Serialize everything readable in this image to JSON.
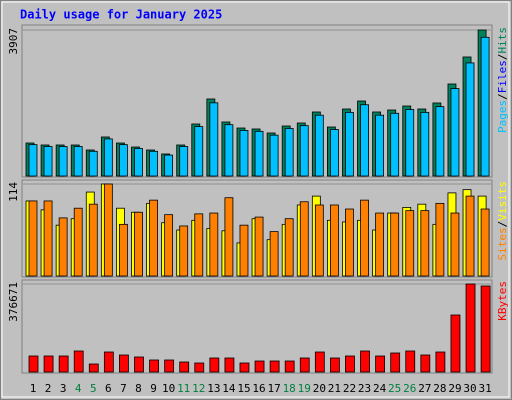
{
  "legend_separator": "/",
  "chart_data": [
    {
      "type": "bar",
      "title": "Daily usage for January 2025",
      "ylim": [
        0,
        3907
      ],
      "yticks": [
        3907
      ],
      "series": [
        {
          "name": "Hits",
          "color": "#00805c",
          "values": [
            883,
            830,
            830,
            830,
            696,
            1044,
            883,
            776,
            696,
            589,
            830,
            1392,
            2061,
            1445,
            1284,
            1258,
            1151,
            1338,
            1418,
            1713,
            1311,
            1793,
            2007,
            1713,
            1766,
            1873,
            1793,
            1954,
            2462,
            3185,
            3907
          ]
        },
        {
          "name": "Files",
          "color": "#0000ff",
          "values": [
            265,
            249,
            249,
            249,
            209,
            313,
            265,
            233,
            209,
            177,
            249,
            418,
            618,
            434,
            385,
            377,
            345,
            401,
            425,
            514,
            393,
            538,
            602,
            514,
            530,
            562,
            538,
            586,
            739,
            956,
            1172
          ]
        },
        {
          "name": "Pages",
          "color": "#00c0ff",
          "values": [
            839,
            789,
            789,
            789,
            661,
            992,
            839,
            737,
            661,
            560,
            789,
            1322,
            1958,
            1373,
            1220,
            1195,
            1093,
            1271,
            1347,
            1627,
            1245,
            1703,
            1907,
            1627,
            1678,
            1779,
            1703,
            1856,
            2339,
            3026,
            3712
          ]
        }
      ]
    },
    {
      "type": "bar",
      "ylim": [
        0,
        114
      ],
      "yticks": [
        114
      ],
      "series": [
        {
          "name": "Visits",
          "color": "#ffff00",
          "values": [
            93,
            82,
            63,
            71,
            104,
            114,
            84,
            79,
            90,
            66,
            57,
            69,
            59,
            56,
            41,
            71,
            45,
            64,
            88,
            99,
            69,
            67,
            69,
            57,
            78,
            85,
            89,
            64,
            103,
            107,
            99
          ]
        },
        {
          "name": "Sites",
          "color": "#ff8000",
          "values": [
            93,
            93,
            72,
            84,
            89,
            114,
            64,
            79,
            94,
            76,
            62,
            77,
            78,
            97,
            63,
            73,
            55,
            71,
            92,
            88,
            88,
            83,
            94,
            78,
            78,
            81,
            81,
            90,
            78,
            99,
            83
          ]
        }
      ]
    },
    {
      "type": "bar",
      "ylim": [
        0,
        376671
      ],
      "yticks": [
        376671
      ],
      "categories": [
        1,
        2,
        3,
        4,
        5,
        6,
        7,
        8,
        9,
        10,
        11,
        12,
        13,
        14,
        15,
        16,
        17,
        18,
        19,
        20,
        21,
        22,
        23,
        24,
        25,
        26,
        27,
        28,
        29,
        30,
        31
      ],
      "category_colors": [
        "#000000",
        "#000000",
        "#000000",
        "#008040",
        "#008040",
        "#000000",
        "#000000",
        "#000000",
        "#000000",
        "#000000",
        "#008040",
        "#008040",
        "#000000",
        "#000000",
        "#000000",
        "#000000",
        "#000000",
        "#008040",
        "#008040",
        "#000000",
        "#000000",
        "#000000",
        "#000000",
        "#000000",
        "#008040",
        "#008040",
        "#000000",
        "#000000",
        "#000000",
        "#000000",
        "#000000"
      ],
      "series": [
        {
          "name": "KBytes",
          "color": "#ff0000",
          "values": [
            68480,
            68480,
            68480,
            89880,
            34240,
            85600,
            72760,
            64200,
            51360,
            51360,
            42800,
            38520,
            59920,
            59920,
            38520,
            47080,
            47080,
            47080,
            59920,
            85600,
            59920,
            68480,
            89880,
            68480,
            81320,
            89880,
            72760,
            85600,
            243960,
            376671,
            368080
          ]
        }
      ]
    }
  ]
}
